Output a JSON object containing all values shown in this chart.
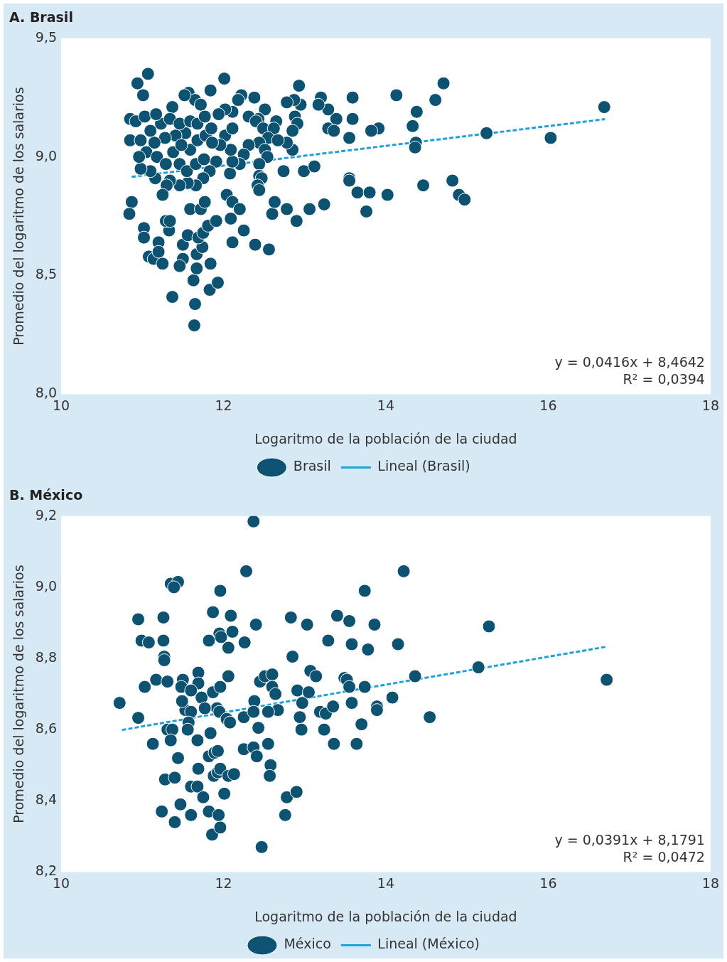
{
  "chart_data": [
    {
      "type": "scatter",
      "title": "A. Brasil",
      "xlabel": "Logaritmo de la población de la ciudad",
      "ylabel": "Promedio del logaritmo de los salarios",
      "xlim": [
        10,
        18
      ],
      "xticks": [
        10,
        12,
        14,
        16,
        18
      ],
      "ylim": [
        8,
        9.5
      ],
      "yticks": [
        {
          "value": 8,
          "label": "8,0"
        },
        {
          "value": 8.5,
          "label": "8,5"
        },
        {
          "value": 9,
          "label": "9,0"
        },
        {
          "value": 9.5,
          "label": "9,5"
        }
      ],
      "legend": "bottom",
      "marker": "circle",
      "annotations": [
        "y = 0,0416x + 8,4642",
        "R² = 0,0394"
      ],
      "series": [
        {
          "name": "Brasil",
          "color": "#0d5270",
          "x": [
            10.94,
            11.07,
            11.01,
            12.01,
            10.85,
            10.92,
            10.85,
            10.98,
            10.87,
            10.84,
            11.02,
            11.02,
            11.08,
            11.14,
            11.2,
            11.2,
            11.25,
            11.33,
            11.29,
            11.34,
            11.5,
            11.46,
            11.63,
            11.37,
            11.65,
            11.64,
            11.83,
            11.93,
            11.84,
            11.67,
            11.5,
            11.67,
            11.74,
            11.56,
            11.69,
            11.75,
            11.81,
            11.91,
            11.59,
            11.72,
            11.77,
            12.04,
            12.11,
            12.09,
            12.2,
            12.25,
            12.11,
            12.39,
            12.56,
            12.6,
            12.63,
            12.78,
            12.9,
            13.06,
            13.24,
            12.99,
            13.12,
            12.74,
            13.55,
            13.55,
            13.65,
            13.8,
            13.76,
            14.02,
            14.46,
            14.82,
            14.9,
            14.97,
            15.24,
            16.03,
            16.69,
            14.71,
            14.61,
            14.13,
            14.38,
            14.33,
            14.37,
            14.36,
            13.91,
            13.82,
            13.59,
            13.59,
            13.55,
            13.39,
            13.29,
            13.2,
            13.17,
            13.29,
            13.36,
            12.93,
            12.95,
            12.87,
            12.78,
            12.88,
            12.91,
            12.85,
            12.85,
            12.78,
            12.65,
            12.51,
            12.43,
            12.38,
            12.22,
            12.18,
            11.84,
            11.57,
            11.65,
            11.52,
            11.72,
            11.37,
            12.11,
            12.02,
            11.94,
            12.31,
            12.4,
            12.49,
            12.62,
            12.55,
            12.67,
            12.44,
            12.51,
            12.54,
            12.44,
            12.44,
            12.47,
            12.42,
            12.44,
            12.31,
            12.25,
            12.2,
            12.08,
            12.11,
            12.09,
            12.02,
            12.11,
            11.96,
            11.91,
            11.83,
            11.75,
            11.66,
            11.56,
            11.46,
            11.34,
            11.3,
            11.25,
            11.16,
            11.1,
            10.98,
            11.05,
            10.96,
            11.18,
            11.29,
            11.38,
            11.46,
            11.55,
            11.66,
            11.76,
            11.59,
            11.68,
            11.78,
            11.85,
            11.53,
            11.41,
            11.28,
            11.15,
            11.1,
            11.23,
            11.34,
            11.46,
            11.59,
            11.68,
            11.77,
            11.03,
            11.17,
            11.86,
            11.48
          ],
          "values": [
            9.31,
            9.35,
            9.26,
            9.33,
            9.16,
            9.15,
            9.07,
            9.07,
            8.81,
            8.76,
            8.7,
            8.66,
            8.58,
            8.57,
            8.64,
            8.6,
            8.55,
            8.69,
            8.73,
            8.73,
            8.57,
            8.54,
            8.48,
            8.41,
            8.38,
            8.29,
            8.44,
            8.47,
            8.55,
            8.53,
            8.63,
            8.59,
            8.62,
            8.67,
            8.66,
            8.68,
            8.71,
            8.73,
            8.78,
            8.78,
            8.81,
            8.84,
            8.81,
            8.74,
            8.78,
            8.69,
            8.64,
            8.63,
            8.61,
            8.76,
            8.81,
            8.78,
            8.73,
            8.78,
            8.8,
            8.94,
            8.96,
            8.94,
            8.91,
            8.9,
            8.85,
            8.85,
            8.77,
            8.84,
            8.88,
            8.9,
            8.84,
            8.82,
            9.1,
            9.08,
            9.21,
            9.31,
            9.24,
            9.26,
            9.19,
            9.13,
            9.06,
            9.04,
            9.12,
            9.11,
            9.25,
            9.16,
            9.08,
            9.16,
            9.2,
            9.25,
            9.22,
            9.12,
            9.11,
            9.3,
            9.22,
            9.24,
            9.23,
            9.17,
            9.14,
            9.11,
            9.03,
            9.06,
            9.15,
            9.2,
            9.16,
            9.25,
            9.26,
            9.24,
            9.28,
            9.27,
            9.24,
            9.26,
            9.22,
            9.21,
            9.19,
            9.2,
            9.18,
            9.17,
            9.15,
            9.12,
            9.12,
            9.08,
            9.07,
            9.06,
            9.03,
            9.0,
            8.97,
            8.92,
            8.91,
            8.88,
            8.86,
            9.05,
            9.01,
            8.97,
            8.93,
            8.98,
            9.03,
            9.09,
            9.12,
            9.05,
            8.98,
            8.94,
            8.91,
            8.88,
            8.89,
            8.88,
            8.9,
            8.88,
            8.84,
            8.91,
            8.94,
            8.95,
            9.02,
            9.0,
            9.0,
            8.97,
            9.02,
            8.97,
            8.94,
            8.97,
            8.99,
            9.03,
            9.07,
            9.09,
            9.12,
            9.1,
            9.09,
            9.08,
            9.06,
            9.11,
            9.14,
            9.16,
            9.14,
            9.15,
            9.14,
            9.17,
            9.17,
            9.18,
            9.06,
            9.05
          ]
        },
        {
          "name": "Lineal (Brasil)",
          "type": "line",
          "color": "#1ea0dc",
          "line_style": "dashed",
          "marker": "none",
          "x": [
            10.87,
            16.7
          ],
          "values": [
            8.916,
            9.159
          ]
        }
      ]
    },
    {
      "type": "scatter",
      "title": "B. México",
      "xlabel": "Logaritmo de la población de la ciudad",
      "ylabel": "Promedio del logaritmo de los salarios",
      "xlim": [
        10,
        18
      ],
      "xticks": [
        10,
        12,
        14,
        16,
        18
      ],
      "ylim": [
        8.2,
        9.2
      ],
      "yticks": [
        {
          "value": 8.2,
          "label": "8,2"
        },
        {
          "value": 8.4,
          "label": "8,4"
        },
        {
          "value": 8.6,
          "label": "8,6"
        },
        {
          "value": 8.8,
          "label": "8,8"
        },
        {
          "value": 9,
          "label": "9,0"
        },
        {
          "value": 9.2,
          "label": "9,2"
        }
      ],
      "legend": "bottom",
      "marker": "circle",
      "annotations": [
        "y = 0,0391x + 8,1791",
        "R² = 0,0472"
      ],
      "series": [
        {
          "name": "México",
          "color": "#0d5270",
          "x": [
            10.72,
            10.95,
            10.95,
            10.99,
            11.08,
            11.03,
            11.17,
            11.13,
            11.26,
            11.26,
            11.27,
            11.27,
            11.31,
            11.24,
            11.28,
            11.35,
            11.44,
            11.39,
            11.31,
            11.37,
            11.35,
            11.44,
            11.4,
            11.47,
            11.4,
            11.6,
            11.5,
            11.48,
            11.53,
            11.6,
            11.57,
            11.56,
            11.68,
            11.69,
            11.6,
            11.68,
            11.75,
            11.82,
            11.86,
            11.96,
            11.94,
            12.01,
            11.88,
            11.93,
            11.96,
            12.06,
            12.13,
            11.82,
            11.89,
            11.93,
            11.84,
            11.69,
            11.69,
            11.6,
            11.73,
            11.87,
            11.96,
            11.87,
            11.96,
            11.82,
            11.95,
            11.97,
            12.09,
            12.11,
            12.06,
            12.06,
            11.92,
            11.95,
            12.04,
            12.08,
            12.25,
            12.28,
            12.37,
            12.26,
            12.4,
            12.38,
            12.43,
            12.37,
            12.25,
            12.37,
            12.41,
            12.47,
            12.55,
            12.58,
            12.57,
            12.45,
            12.51,
            12.6,
            12.6,
            12.64,
            12.67,
            12.55,
            12.78,
            12.76,
            12.9,
            12.85,
            12.83,
            13.03,
            12.91,
            12.97,
            13.05,
            12.94,
            12.96,
            13.07,
            13.14,
            13.19,
            13.26,
            13.24,
            13.35,
            13.36,
            13.29,
            13.4,
            13.55,
            13.58,
            13.49,
            13.52,
            13.55,
            13.58,
            13.7,
            13.64,
            13.74,
            13.78,
            13.86,
            13.74,
            13.89,
            13.89,
            14.08,
            14.15,
            14.22,
            14.36,
            14.54,
            15.14,
            15.27,
            16.72,
            11.77,
            11.49
          ],
          "values": [
            8.675,
            8.633,
            8.91,
            8.85,
            8.845,
            8.72,
            8.74,
            8.56,
            8.915,
            8.85,
            8.805,
            8.795,
            8.735,
            8.37,
            8.46,
            9.01,
            9.015,
            9.0,
            8.6,
            8.6,
            8.57,
            8.52,
            8.465,
            8.39,
            8.34,
            8.36,
            8.74,
            8.72,
            8.655,
            8.65,
            8.62,
            8.6,
            8.57,
            8.49,
            8.44,
            8.44,
            8.41,
            8.37,
            8.305,
            8.325,
            8.36,
            8.42,
            8.47,
            8.48,
            8.49,
            8.47,
            8.475,
            8.525,
            8.535,
            8.54,
            8.59,
            8.76,
            8.73,
            8.71,
            8.69,
            8.705,
            8.72,
            8.93,
            8.99,
            8.85,
            8.87,
            8.86,
            8.92,
            8.875,
            8.83,
            8.75,
            8.66,
            8.65,
            8.63,
            8.62,
            8.635,
            9.045,
            9.185,
            8.845,
            8.895,
            8.68,
            8.605,
            8.65,
            8.545,
            8.55,
            8.525,
            8.27,
            8.56,
            8.5,
            8.47,
            8.735,
            8.75,
            8.755,
            8.72,
            8.7,
            8.655,
            8.65,
            8.41,
            8.36,
            8.425,
            8.805,
            8.915,
            8.895,
            8.71,
            8.675,
            8.705,
            8.635,
            8.6,
            8.765,
            8.75,
            8.65,
            8.645,
            8.6,
            8.665,
            8.56,
            8.85,
            8.92,
            8.905,
            8.84,
            8.745,
            8.74,
            8.72,
            8.675,
            8.615,
            8.56,
            8.99,
            8.825,
            8.895,
            8.72,
            8.665,
            8.655,
            8.69,
            8.84,
            9.045,
            8.75,
            8.635,
            8.775,
            8.89,
            8.74,
            8.66,
            8.68
          ]
        },
        {
          "name": "Lineal (México)",
          "type": "line",
          "color": "#1ea0dc",
          "line_style": "dashed",
          "marker": "none",
          "x": [
            10.75,
            16.72
          ],
          "values": [
            8.599,
            8.833
          ]
        }
      ]
    }
  ]
}
